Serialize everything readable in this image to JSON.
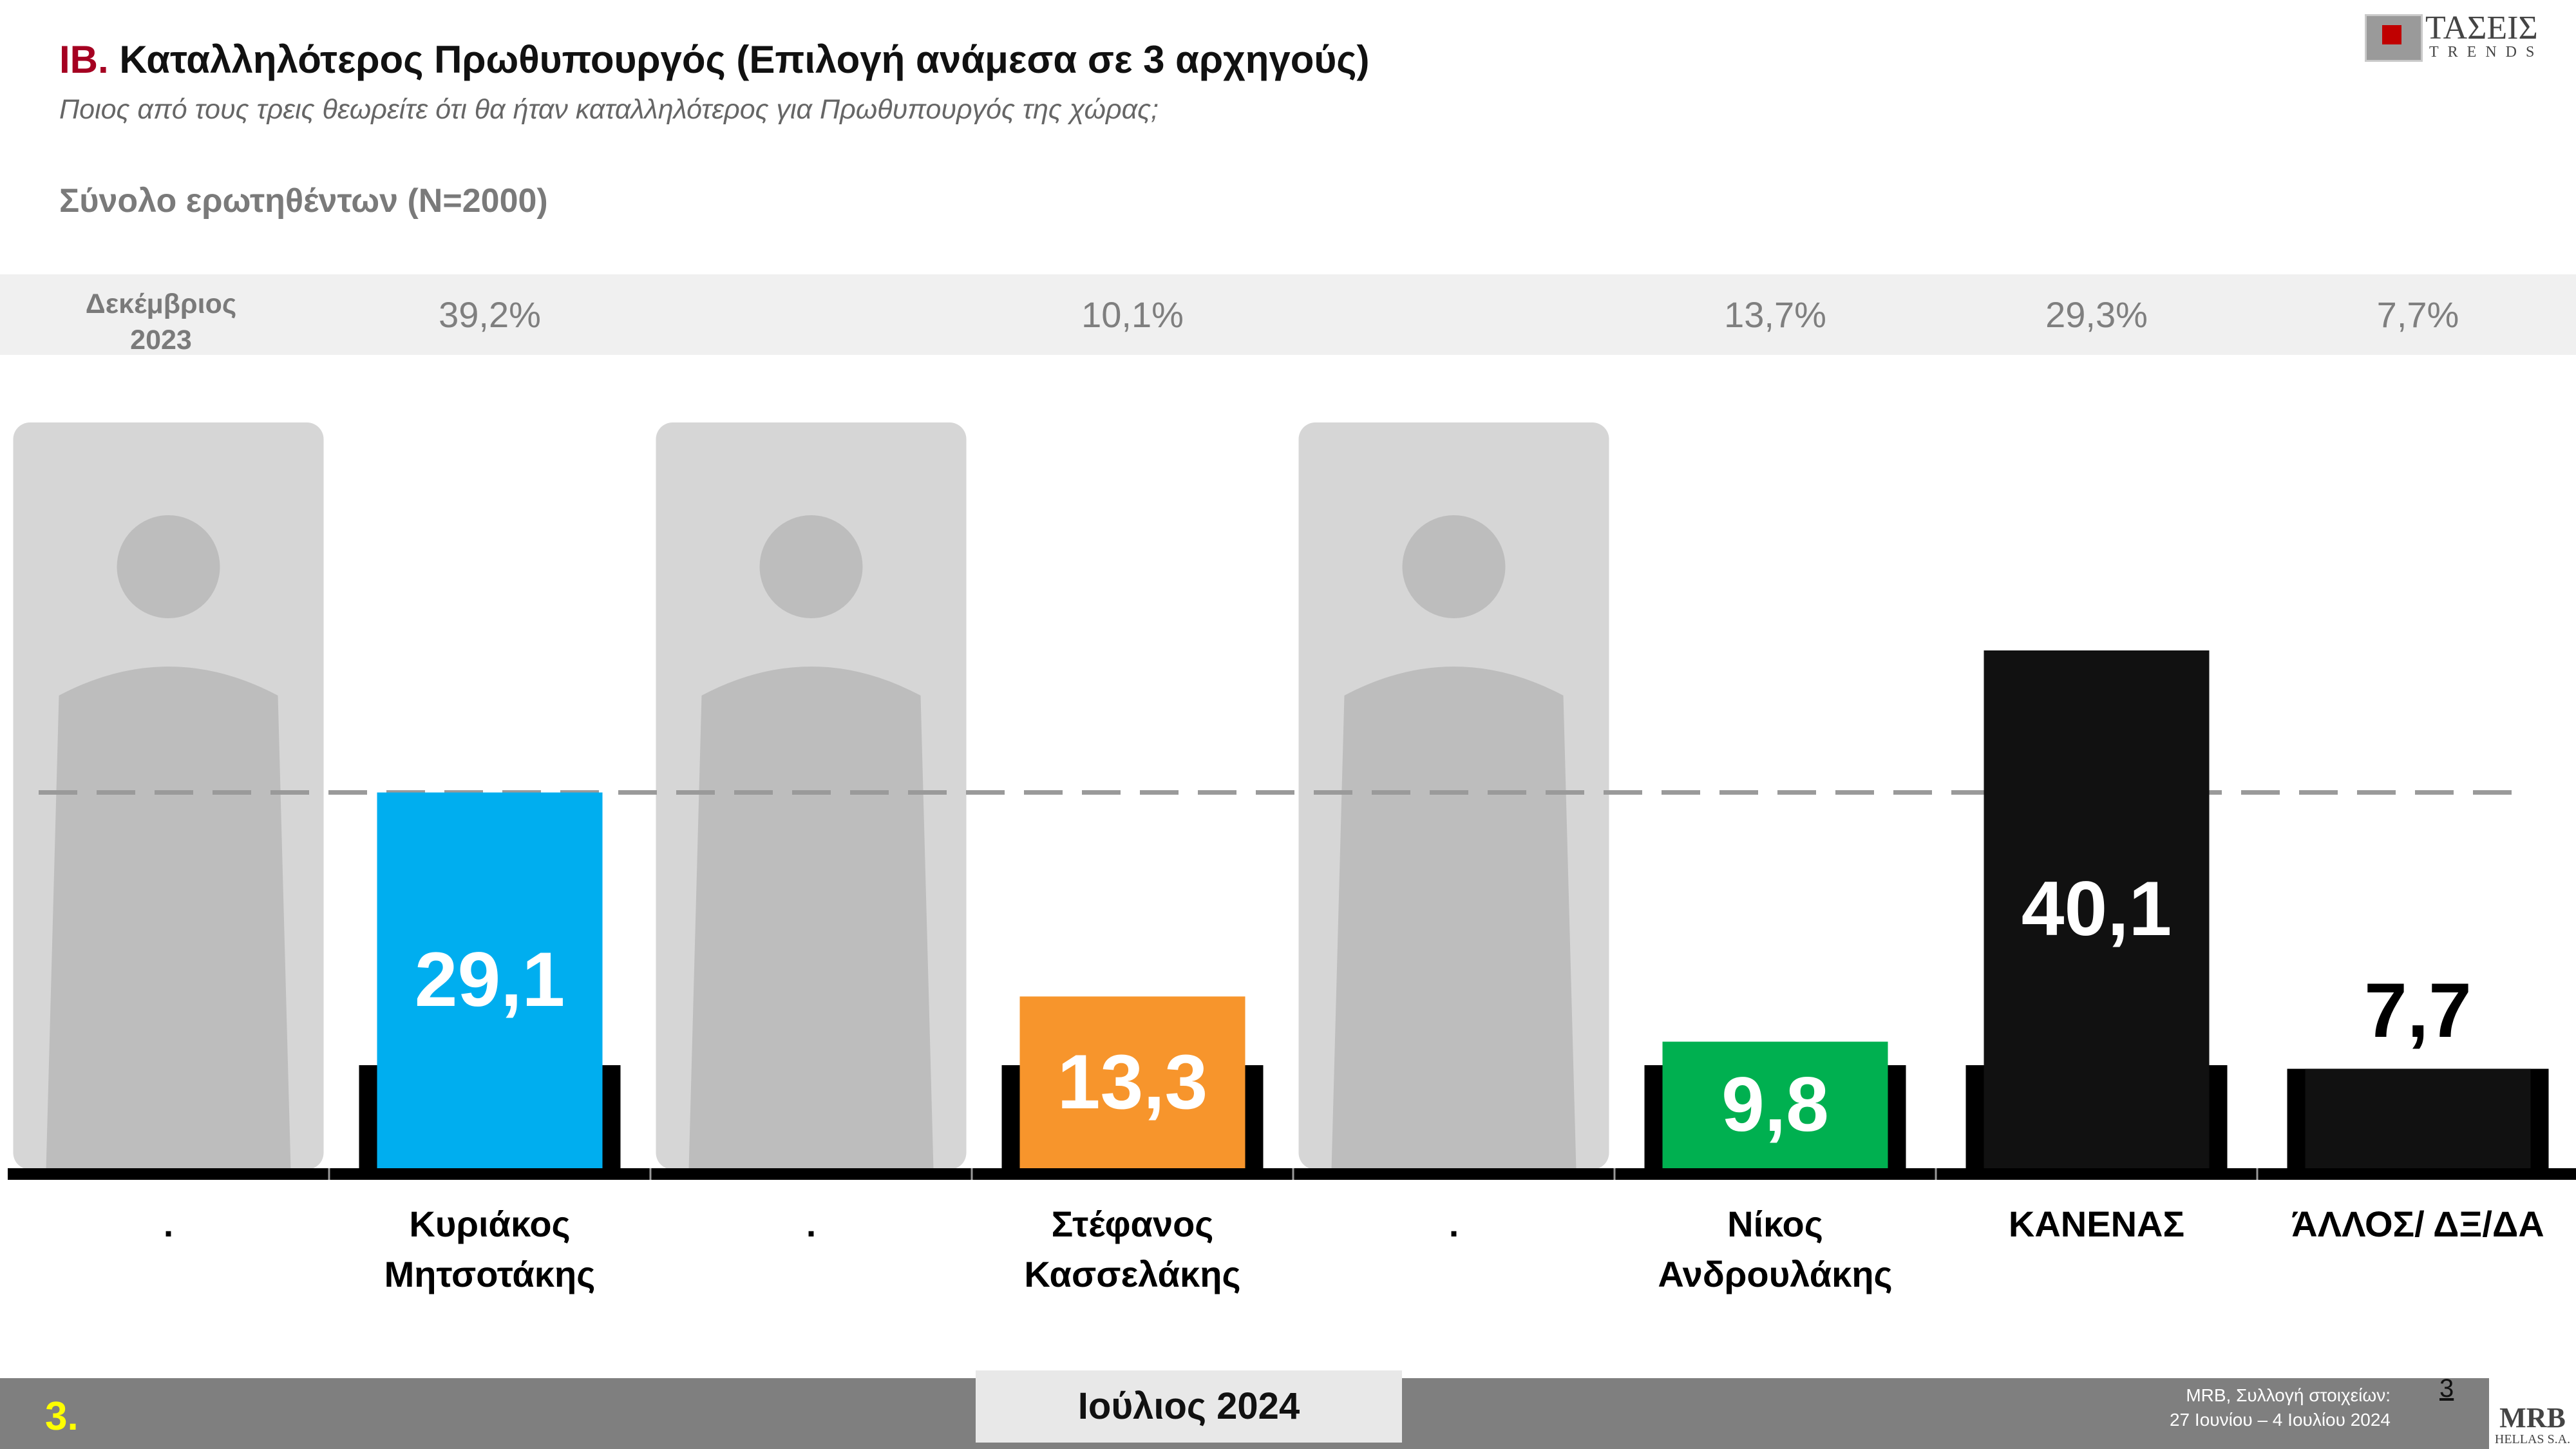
{
  "header": {
    "tag": "IB.",
    "title": "Καταλληλότερος Πρωθυπουργός (Επιλογή ανάμεσα σε 3 αρχηγούς)",
    "subtitle": "Ποιος από τους τρεις θεωρείτε ότι θα ήταν καταλληλότερος για Πρωθυπουργός της χώρας;",
    "sample": "Σύνολο ερωτηθέντων (N=2000)",
    "logo_main": "ΤΑΣΕΙΣ",
    "logo_sub": "TRENDS"
  },
  "chart_data": {
    "type": "bar",
    "categories": [
      ".",
      "Κυριάκος Μητσοτάκης",
      ".",
      "Στέφανος Κασσελάκης",
      ".",
      "Νίκος Ανδρουλάκης",
      "ΚΑΝΕΝΑΣ",
      "ΆΛΛΟΣ/ ΔΞ/ΔΑ"
    ],
    "values": [
      null,
      29.1,
      null,
      13.3,
      null,
      9.8,
      40.1,
      7.7
    ],
    "value_labels": [
      null,
      "29,1",
      null,
      "13,3",
      null,
      "9,8",
      "40,1",
      "7,7"
    ],
    "colors": [
      null,
      "#00aeef",
      null,
      "#f7952c",
      null,
      "#00b050",
      "#111111",
      "#111111"
    ],
    "previous": {
      "label": "Δεκέμβριος 2023",
      "values": [
        null,
        39.2,
        null,
        10.1,
        null,
        13.7,
        29.3,
        7.7
      ],
      "value_labels": [
        null,
        "39,2%",
        null,
        "10,1%",
        null,
        "13,7%",
        "29,3%",
        "7,7%"
      ]
    }
  },
  "footer": {
    "number": "3.",
    "period": "Ιούλιος 2024",
    "source_line1": "MRB, Συλλογή στοιχείων:",
    "source_line2": "27 Ιουνίου – 4 Ιουλίου 2024",
    "page": "3",
    "brand": "MRB",
    "brand_sub": "HELLAS S.A."
  }
}
